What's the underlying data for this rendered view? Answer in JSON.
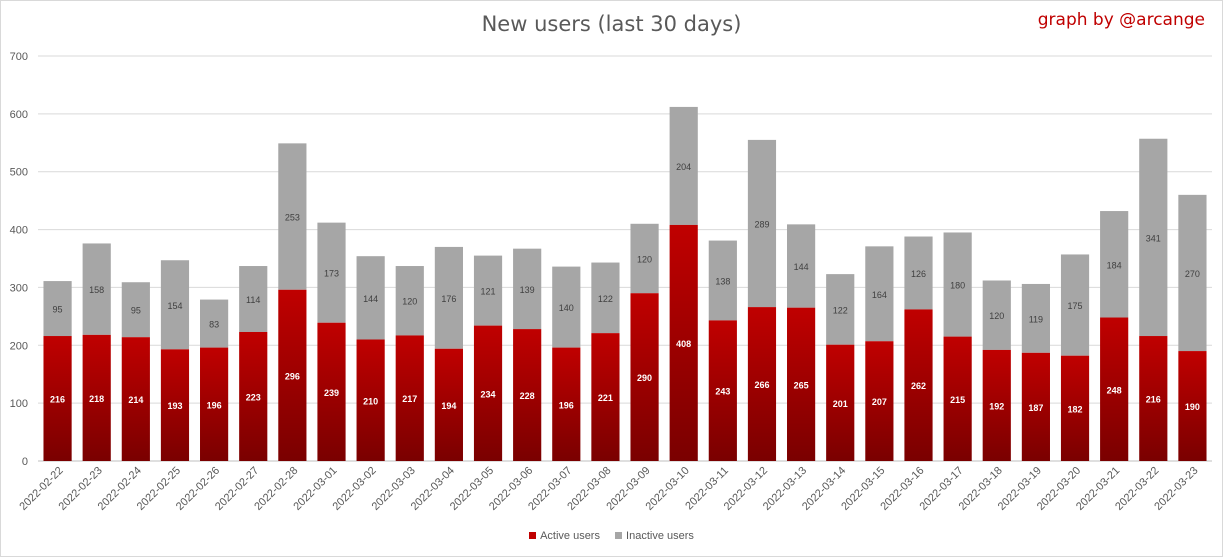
{
  "title": "New users (last 30 days)",
  "credit": "graph by @arcange",
  "colors": {
    "active_top": "#c00000",
    "active_bottom": "#7a0000",
    "inactive": "#a6a6a6",
    "grid": "#d9d9d9",
    "axis_text": "#595959"
  },
  "chart_data": {
    "type": "bar",
    "stacked": true,
    "title": "New users (last 30 days)",
    "categories": [
      "2022-02-22",
      "2022-02-23",
      "2022-02-24",
      "2022-02-25",
      "2022-02-26",
      "2022-02-27",
      "2022-02-28",
      "2022-03-01",
      "2022-03-02",
      "2022-03-03",
      "2022-03-04",
      "2022-03-05",
      "2022-03-06",
      "2022-03-07",
      "2022-03-08",
      "2022-03-09",
      "2022-03-10",
      "2022-03-11",
      "2022-03-12",
      "2022-03-13",
      "2022-03-14",
      "2022-03-15",
      "2022-03-16",
      "2022-03-17",
      "2022-03-18",
      "2022-03-19",
      "2022-03-20",
      "2022-03-21",
      "2022-03-22",
      "2022-03-23"
    ],
    "series": [
      {
        "name": "Active users",
        "values": [
          216,
          218,
          214,
          193,
          196,
          223,
          296,
          239,
          210,
          217,
          194,
          234,
          228,
          196,
          221,
          290,
          408,
          243,
          266,
          265,
          201,
          207,
          262,
          215,
          192,
          187,
          182,
          248,
          216,
          190
        ]
      },
      {
        "name": "Inactive users",
        "values": [
          95,
          158,
          95,
          154,
          83,
          114,
          253,
          173,
          144,
          120,
          176,
          121,
          139,
          140,
          122,
          120,
          204,
          138,
          289,
          144,
          122,
          164,
          126,
          180,
          120,
          119,
          175,
          184,
          341,
          270
        ]
      }
    ],
    "ylim": [
      0,
      700
    ],
    "yticks": [
      0,
      100,
      200,
      300,
      400,
      500,
      600,
      700
    ],
    "grid": true,
    "legend_position": "bottom"
  }
}
